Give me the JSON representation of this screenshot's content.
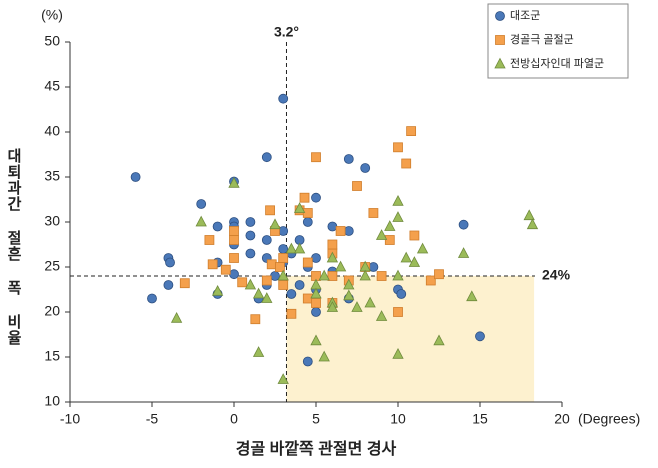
{
  "chart_data": {
    "type": "scatter",
    "x_label": "경골 바깥쪽 관절면 경사",
    "x_unit": "(Degrees)",
    "y_label": "대퇴과간 절흔 폭 비율",
    "y_unit": "(%)",
    "xlim": [
      -10,
      20
    ],
    "ylim": [
      10,
      50
    ],
    "xticks": [
      -10,
      -5,
      0,
      5,
      10,
      15,
      20
    ],
    "yticks": [
      10,
      15,
      20,
      25,
      30,
      35,
      40,
      45,
      50
    ],
    "grid": false,
    "legend": "upper right",
    "reference_lines": [
      {
        "axis": "x",
        "value": 3.2,
        "label": "3.2°"
      },
      {
        "axis": "y",
        "value": 24,
        "label": "24%"
      }
    ],
    "shaded_region": {
      "xlim": [
        3.2,
        18.3
      ],
      "ylim": [
        10,
        24
      ],
      "color": "#fdf1cf"
    },
    "series": [
      {
        "name": "대조군",
        "marker": "circle",
        "color": "#4a78b8",
        "x": [
          -6,
          -5,
          -4,
          -3.9,
          -4,
          -2,
          -1,
          -1,
          -1,
          0,
          0,
          0,
          0,
          0,
          1,
          1,
          1,
          1.5,
          2,
          2,
          2,
          2,
          2.5,
          3,
          3,
          3,
          3,
          3.5,
          3.5,
          4,
          4,
          4.5,
          4.5,
          5,
          5,
          5,
          5,
          4.5,
          6,
          6,
          7,
          7,
          7,
          8,
          8.5,
          10,
          10.2,
          14,
          15
        ],
        "values": [
          35,
          21.5,
          26,
          25.5,
          23,
          32,
          29.5,
          25.5,
          22,
          34.5,
          30,
          29.5,
          27.5,
          24.2,
          30,
          28.5,
          26.5,
          21.5,
          37.2,
          28,
          26,
          23,
          24,
          43.7,
          29,
          27,
          25.5,
          26.5,
          22,
          28,
          23,
          30,
          25,
          32.7,
          26,
          20,
          22.5,
          14.5,
          29.5,
          24.5,
          37,
          29,
          21.5,
          36,
          25,
          22.5,
          22,
          29.7,
          17.3
        ]
      },
      {
        "name": "경골극 골절군",
        "marker": "square",
        "color": "#f4a04c",
        "x": [
          -3,
          -1.5,
          -1.3,
          -0.5,
          0,
          0,
          0,
          0.5,
          1.3,
          2,
          2.2,
          2.3,
          2.5,
          2.8,
          3,
          3,
          3.5,
          4,
          4.3,
          4.5,
          4.5,
          4.5,
          5,
          5,
          5,
          6,
          6,
          6,
          6.5,
          7.5,
          8,
          8.5,
          9,
          9.5,
          10,
          10,
          10.5,
          10.8,
          11,
          12,
          12.5,
          6,
          7
        ],
        "values": [
          23.2,
          28,
          25.3,
          24.7,
          29,
          28,
          26,
          23.3,
          19.2,
          23.5,
          31.3,
          25.3,
          29,
          25,
          26,
          23,
          19.8,
          31.3,
          32.7,
          31,
          25.5,
          21.5,
          37.2,
          24,
          21,
          26.5,
          27.5,
          24,
          29,
          34,
          25,
          31,
          24,
          28,
          38.3,
          20,
          36.5,
          40.1,
          28.5,
          23.5,
          24.2,
          21,
          23.5
        ]
      },
      {
        "name": "전방십자인대 파열군",
        "marker": "triangle",
        "color": "#9bbb59",
        "x": [
          -2,
          -1,
          -3.5,
          0,
          1,
          1.5,
          2,
          2.5,
          1.5,
          3,
          3,
          3.5,
          4,
          4,
          5,
          5,
          5,
          5.5,
          5.5,
          6,
          6,
          6.5,
          7,
          7,
          7.5,
          8,
          8.3,
          9,
          9,
          9.5,
          10,
          10,
          10,
          10,
          10.5,
          11,
          11.5,
          12.5,
          14,
          14.5,
          18,
          18.2,
          8,
          6
        ],
        "values": [
          30,
          22.3,
          19.3,
          34.3,
          23,
          22,
          21.5,
          29.7,
          15.5,
          12.5,
          24,
          27,
          31.5,
          27,
          23,
          22,
          16.8,
          15,
          24,
          21,
          20.5,
          25,
          23,
          21.8,
          20.5,
          25,
          21,
          28.5,
          19.5,
          29.5,
          32.3,
          30.5,
          24,
          15.3,
          26,
          25.5,
          27,
          16.8,
          26.5,
          21.7,
          30.7,
          29.7,
          24,
          26
        ]
      }
    ]
  }
}
